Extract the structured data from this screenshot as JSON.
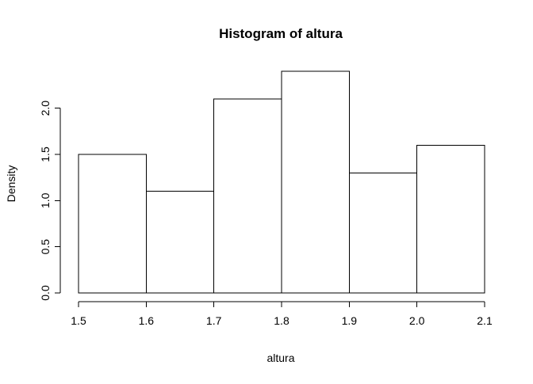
{
  "chart_data": {
    "type": "bar",
    "subtype": "histogram",
    "title": "Histogram of altura",
    "xlabel": "altura",
    "ylabel": "Density",
    "bins": [
      {
        "start": 1.5,
        "end": 1.6,
        "density": 1.5
      },
      {
        "start": 1.6,
        "end": 1.7,
        "density": 1.1
      },
      {
        "start": 1.7,
        "end": 1.8,
        "density": 2.1
      },
      {
        "start": 1.8,
        "end": 1.9,
        "density": 2.4
      },
      {
        "start": 1.9,
        "end": 2.0,
        "density": 1.3
      },
      {
        "start": 2.0,
        "end": 2.1,
        "density": 1.6
      }
    ],
    "xlim": [
      1.5,
      2.1
    ],
    "ylim": [
      0,
      2.4
    ],
    "x_ticks": [
      1.5,
      1.6,
      1.7,
      1.8,
      1.9,
      2.0,
      2.1
    ],
    "x_tick_labels": [
      "1.5",
      "1.6",
      "1.7",
      "1.8",
      "1.9",
      "2.0",
      "2.1"
    ],
    "y_ticks": [
      0.0,
      0.5,
      1.0,
      1.5,
      2.0
    ],
    "y_tick_labels": [
      "0.0",
      "0.5",
      "1.0",
      "1.5",
      "2.0"
    ],
    "grid": false,
    "legend": "none",
    "colors": {
      "bar_fill": "#ffffff",
      "bar_stroke": "#000000",
      "axis": "#000000",
      "background": "#ffffff"
    }
  }
}
